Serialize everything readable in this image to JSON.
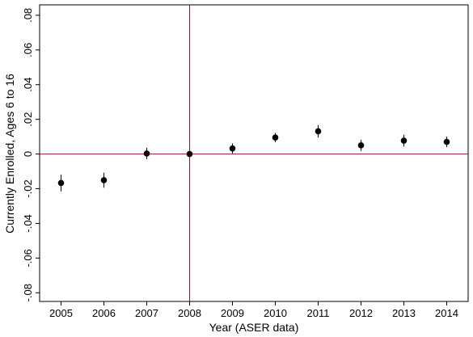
{
  "chart_data": {
    "type": "scatter",
    "title": "",
    "xlabel": "Year   (ASER data)",
    "ylabel": "Currently Enrolled, Ages 6 to 16",
    "x": [
      2005,
      2006,
      2007,
      2008,
      2009,
      2010,
      2011,
      2012,
      2013,
      2014
    ],
    "x_tick_labels": [
      "2005",
      "2006",
      "2007",
      "2008",
      "2009",
      "2010",
      "2011",
      "2012",
      "2013",
      "2014"
    ],
    "y_tick_values": [
      -0.08,
      -0.06,
      -0.04,
      -0.02,
      0,
      0.02,
      0.04,
      0.06,
      0.08
    ],
    "y_tick_labels": [
      "-.08",
      "-.06",
      "-.04",
      "-.02",
      "0",
      ".02",
      ".04",
      ".06",
      ".08"
    ],
    "xlim": [
      2004.5,
      2014.5
    ],
    "ylim": [
      -0.085,
      0.086
    ],
    "grid": false,
    "series": [
      {
        "values": [
          -0.0167,
          -0.0151,
          0.0003,
          0.0,
          0.0032,
          0.0095,
          0.0131,
          0.005,
          0.0077,
          0.007
        ],
        "ci_low": [
          -0.0215,
          -0.0194,
          -0.003,
          0.0,
          0.0003,
          0.0068,
          0.0095,
          0.0018,
          0.0043,
          0.004
        ],
        "ci_high": [
          -0.0119,
          -0.0108,
          0.0036,
          0.0,
          0.0061,
          0.0122,
          0.0167,
          0.0082,
          0.0111,
          0.01
        ]
      }
    ],
    "reference_lines": {
      "vertical_x": 2008,
      "horizontal_y": 0
    },
    "colors": {
      "marker": "#000000",
      "reference_line": "#8b1a2b",
      "axis": "#000000"
    }
  }
}
